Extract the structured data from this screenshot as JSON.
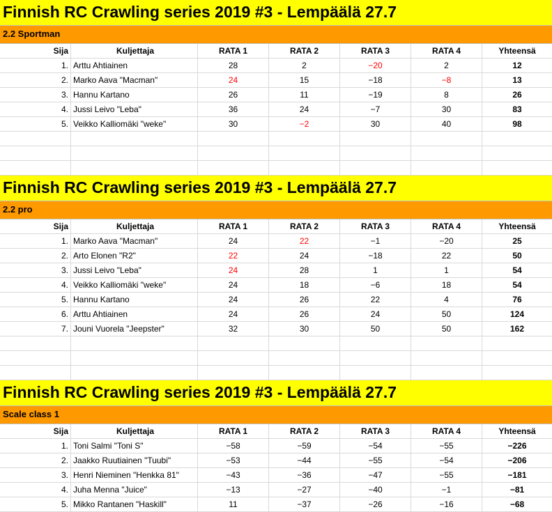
{
  "columns": {
    "rank": "Sija",
    "driver": "Kuljettaja",
    "r1": "RATA 1",
    "r2": "RATA 2",
    "r3": "RATA 3",
    "r4": "RATA 4",
    "total": "Yhteensä"
  },
  "colors": {
    "title_bg": "#ffff00",
    "category_bg": "#ff9900",
    "highlight": "#ff0000"
  },
  "sections": [
    {
      "title": "Finnish RC Crawling series 2019 #3 - Lempäälä 27.7",
      "category": "2.2 Sportman",
      "rows": [
        {
          "rank": "1.",
          "driver": "Arttu Ahtiainen",
          "r1": "28",
          "r2": "2",
          "r3": "−20",
          "r4": "2",
          "total": "12",
          "red": [
            3
          ]
        },
        {
          "rank": "2.",
          "driver": "Marko Aava \"Macman\"",
          "r1": "24",
          "r2": "15",
          "r3": "−18",
          "r4": "−8",
          "total": "13",
          "red": [
            1,
            4
          ]
        },
        {
          "rank": "3.",
          "driver": "Hannu Kartano",
          "r1": "26",
          "r2": "11",
          "r3": "−19",
          "r4": "8",
          "total": "26",
          "red": []
        },
        {
          "rank": "4.",
          "driver": "Jussi Leivo \"Leba\"",
          "r1": "36",
          "r2": "24",
          "r3": "−7",
          "r4": "30",
          "total": "83",
          "red": []
        },
        {
          "rank": "5.",
          "driver": "Veikko Kalliomäki \"weke\"",
          "r1": "30",
          "r2": "−2",
          "r3": "30",
          "r4": "40",
          "total": "98",
          "red": [
            2
          ]
        }
      ],
      "empty_rows": 3
    },
    {
      "title": "Finnish RC Crawling series 2019 #3 - Lempäälä 27.7",
      "category": "2.2 pro",
      "rows": [
        {
          "rank": "1.",
          "driver": "Marko Aava \"Macman\"",
          "r1": "24",
          "r2": "22",
          "r3": "−1",
          "r4": "−20",
          "total": "25",
          "red": [
            2
          ]
        },
        {
          "rank": "2.",
          "driver": "Arto Elonen \"R2\"",
          "r1": "22",
          "r2": "24",
          "r3": "−18",
          "r4": "22",
          "total": "50",
          "red": [
            1
          ]
        },
        {
          "rank": "3.",
          "driver": "Jussi Leivo \"Leba\"",
          "r1": "24",
          "r2": "28",
          "r3": "1",
          "r4": "1",
          "total": "54",
          "red": [
            1
          ]
        },
        {
          "rank": "4.",
          "driver": "Veikko Kalliomäki \"weke\"",
          "r1": "24",
          "r2": "18",
          "r3": "−6",
          "r4": "18",
          "total": "54",
          "red": []
        },
        {
          "rank": "5.",
          "driver": "Hannu Kartano",
          "r1": "24",
          "r2": "26",
          "r3": "22",
          "r4": "4",
          "total": "76",
          "red": []
        },
        {
          "rank": "6.",
          "driver": "Arttu Ahtiainen",
          "r1": "24",
          "r2": "26",
          "r3": "24",
          "r4": "50",
          "total": "124",
          "red": []
        },
        {
          "rank": "7.",
          "driver": "Jouni Vuorela \"Jeepster\"",
          "r1": "32",
          "r2": "30",
          "r3": "50",
          "r4": "50",
          "total": "162",
          "red": []
        }
      ],
      "empty_rows": 3
    },
    {
      "title": "Finnish RC Crawling series 2019 #3 - Lempäälä 27.7",
      "category": "Scale class 1",
      "rows": [
        {
          "rank": "1.",
          "driver": "Toni Salmi \"Toni S\"",
          "r1": "−58",
          "r2": "−59",
          "r3": "−54",
          "r4": "−55",
          "total": "−226",
          "red": []
        },
        {
          "rank": "2.",
          "driver": "Jaakko Ruutiainen \"Tuubi\"",
          "r1": "−53",
          "r2": "−44",
          "r3": "−55",
          "r4": "−54",
          "total": "−206",
          "red": []
        },
        {
          "rank": "3.",
          "driver": "Henri Nieminen \"Henkka 81\"",
          "r1": "−43",
          "r2": "−36",
          "r3": "−47",
          "r4": "−55",
          "total": "−181",
          "red": []
        },
        {
          "rank": "4.",
          "driver": "Juha Menna \"Juice\"",
          "r1": "−13",
          "r2": "−27",
          "r3": "−40",
          "r4": "−1",
          "total": "−81",
          "red": []
        },
        {
          "rank": "5.",
          "driver": "Mikko Rantanen \"Haskill\"",
          "r1": "11",
          "r2": "−37",
          "r3": "−26",
          "r4": "−16",
          "total": "−68",
          "red": []
        }
      ],
      "empty_rows": 0
    }
  ]
}
